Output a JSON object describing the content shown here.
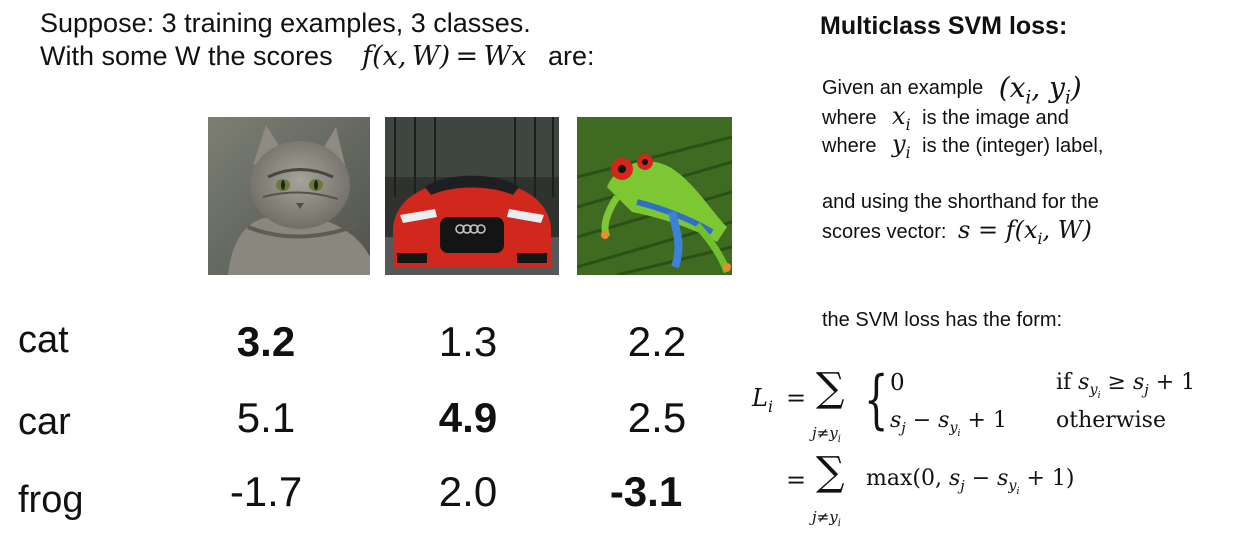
{
  "header": {
    "line1": "Suppose: 3 training examples, 3 classes.",
    "line2_prefix": "With some W the scores",
    "line2_formula": "f(x, W) = Wx",
    "line2_suffix": "are:"
  },
  "images": [
    {
      "name": "cat-image",
      "subject": "cat"
    },
    {
      "name": "car-image",
      "subject": "car"
    },
    {
      "name": "frog-image",
      "subject": "frog"
    }
  ],
  "score_table": {
    "row_labels": [
      "cat",
      "car",
      "frog"
    ],
    "rows": [
      [
        "3.2",
        "1.3",
        "2.2"
      ],
      [
        "5.1",
        "4.9",
        "2.5"
      ],
      [
        "-1.7",
        "2.0",
        "-3.1"
      ]
    ]
  },
  "right_panel": {
    "title": "Multiclass SVM loss:",
    "given": "Given an example",
    "given_formula": "(x_i, y_i)",
    "where1_a": "where",
    "where1_var": "x_i",
    "where1_b": "is the image and",
    "where2_a": "where",
    "where2_var": "y_i",
    "where2_b": "is the (integer) label,",
    "shorthand1": "and using the shorthand for the",
    "shorthand2": "scores vector:",
    "shorthand_formula": "s = f(x_i, W)",
    "form_text": "the SVM loss has the form:",
    "loss_case1_value": "0",
    "loss_case1_cond": "if s_yi ≥ s_j + 1",
    "loss_case2_value": "s_j − s_yi + 1",
    "loss_case2_cond": "otherwise",
    "loss_max": "max(0, s_j − s_yi + 1)"
  }
}
